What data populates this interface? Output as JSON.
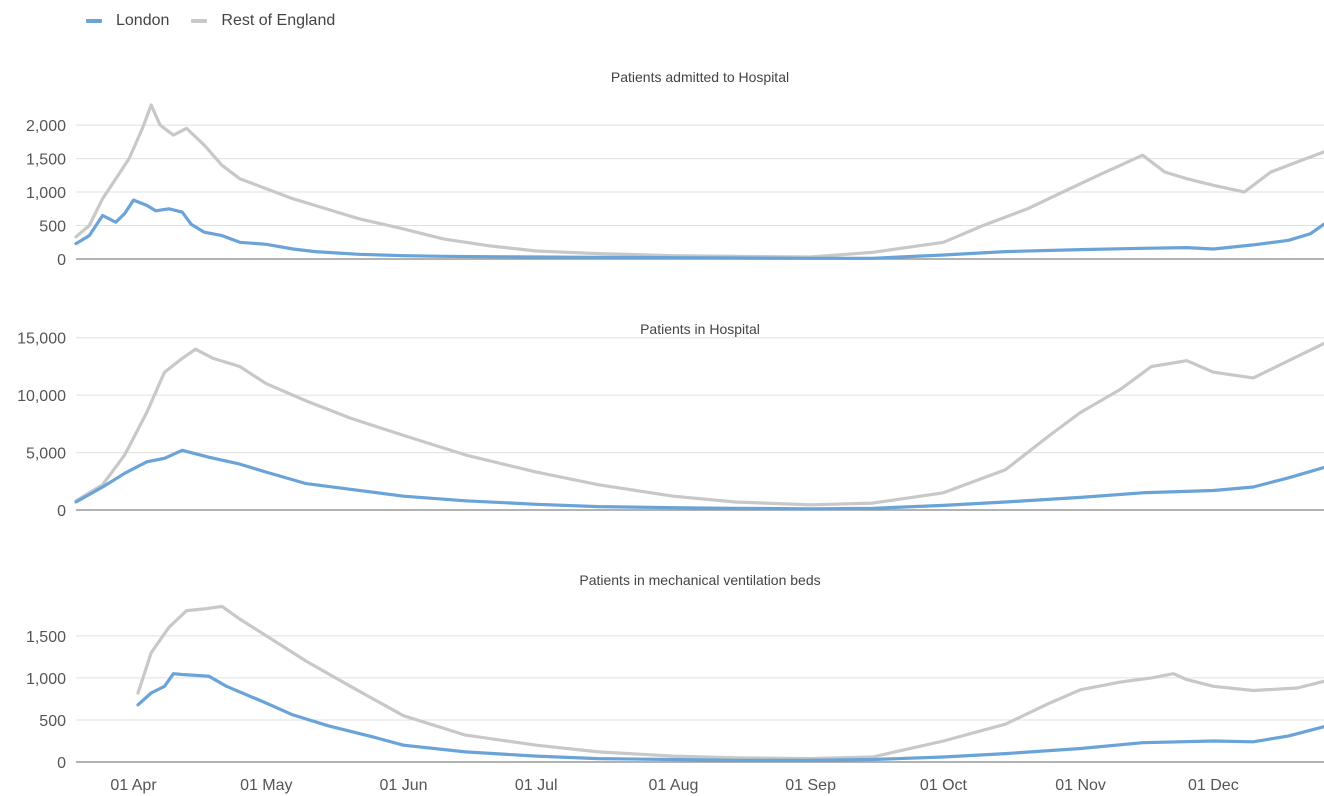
{
  "legend": {
    "london": {
      "label": "London",
      "color": "#6aa3d8"
    },
    "rest": {
      "label": "Rest of England",
      "color": "#c8c8c8"
    }
  },
  "x_ticks": [
    "01 Apr",
    "01 May",
    "01 Jun",
    "01 Jul",
    "01 Aug",
    "01 Sep",
    "01 Oct",
    "01 Nov",
    "01 Dec"
  ],
  "chart_data": [
    {
      "type": "line",
      "title": "Patients admitted to Hospital",
      "xlabel": "",
      "ylabel": "",
      "ylim": [
        0,
        2300
      ],
      "yticks": [
        0,
        500,
        1000,
        1500,
        2000
      ],
      "ytick_labels": [
        "0",
        "500",
        "1,000",
        "1,500",
        "2,000"
      ],
      "grid": true,
      "legend": "top-left",
      "series": [
        {
          "name": "London",
          "color": "#6aa3d8",
          "x": [
            "2020-03-19",
            "2020-03-22",
            "2020-03-25",
            "2020-03-28",
            "2020-03-30",
            "2020-04-01",
            "2020-04-04",
            "2020-04-06",
            "2020-04-09",
            "2020-04-12",
            "2020-04-14",
            "2020-04-17",
            "2020-04-21",
            "2020-04-25",
            "2020-05-01",
            "2020-05-07",
            "2020-05-12",
            "2020-05-17",
            "2020-05-22",
            "2020-06-01",
            "2020-06-10",
            "2020-06-20",
            "2020-07-01",
            "2020-07-15",
            "2020-08-01",
            "2020-08-15",
            "2020-09-01",
            "2020-09-15",
            "2020-10-01",
            "2020-10-15",
            "2020-11-01",
            "2020-11-15",
            "2020-11-25",
            "2020-12-01",
            "2020-12-10",
            "2020-12-18",
            "2020-12-23",
            "2020-12-26"
          ],
          "values": [
            230,
            350,
            650,
            550,
            680,
            880,
            800,
            720,
            750,
            700,
            520,
            400,
            350,
            250,
            220,
            150,
            110,
            90,
            70,
            50,
            40,
            35,
            30,
            25,
            20,
            15,
            10,
            10,
            60,
            110,
            140,
            160,
            170,
            150,
            210,
            280,
            380,
            520
          ]
        },
        {
          "name": "Rest of England",
          "color": "#c8c8c8",
          "x": [
            "2020-03-19",
            "2020-03-22",
            "2020-03-25",
            "2020-03-28",
            "2020-03-31",
            "2020-04-03",
            "2020-04-05",
            "2020-04-07",
            "2020-04-10",
            "2020-04-13",
            "2020-04-17",
            "2020-04-21",
            "2020-04-25",
            "2020-05-01",
            "2020-05-07",
            "2020-05-12",
            "2020-05-17",
            "2020-05-22",
            "2020-06-01",
            "2020-06-10",
            "2020-06-20",
            "2020-07-01",
            "2020-07-15",
            "2020-08-01",
            "2020-08-15",
            "2020-09-01",
            "2020-09-15",
            "2020-10-01",
            "2020-10-10",
            "2020-10-20",
            "2020-10-28",
            "2020-11-05",
            "2020-11-10",
            "2020-11-15",
            "2020-11-20",
            "2020-11-25",
            "2020-12-01",
            "2020-12-08",
            "2020-12-14",
            "2020-12-20",
            "2020-12-26"
          ],
          "values": [
            330,
            500,
            900,
            1200,
            1500,
            1950,
            2300,
            2000,
            1850,
            1950,
            1700,
            1400,
            1200,
            1050,
            900,
            800,
            700,
            600,
            450,
            300,
            200,
            120,
            80,
            50,
            40,
            30,
            100,
            250,
            500,
            750,
            1000,
            1250,
            1400,
            1550,
            1300,
            1200,
            1100,
            1000,
            1300,
            1450,
            1600
          ]
        }
      ]
    },
    {
      "type": "line",
      "title": "Patients in Hospital",
      "xlabel": "",
      "ylabel": "",
      "ylim": [
        0,
        15500
      ],
      "yticks": [
        0,
        5000,
        10000,
        15000
      ],
      "ytick_labels": [
        "0",
        "5,000",
        "10,000",
        "15,000"
      ],
      "grid": true,
      "series": [
        {
          "name": "London",
          "color": "#6aa3d8",
          "x": [
            "2020-03-19",
            "2020-03-25",
            "2020-03-30",
            "2020-04-04",
            "2020-04-08",
            "2020-04-12",
            "2020-04-18",
            "2020-04-25",
            "2020-05-01",
            "2020-05-10",
            "2020-05-20",
            "2020-06-01",
            "2020-06-15",
            "2020-07-01",
            "2020-07-15",
            "2020-08-01",
            "2020-08-15",
            "2020-09-01",
            "2020-09-15",
            "2020-10-01",
            "2020-10-15",
            "2020-11-01",
            "2020-11-15",
            "2020-12-01",
            "2020-12-10",
            "2020-12-18",
            "2020-12-26"
          ],
          "values": [
            700,
            2000,
            3200,
            4200,
            4500,
            5200,
            4600,
            4000,
            3300,
            2300,
            1800,
            1200,
            800,
            500,
            300,
            200,
            150,
            100,
            150,
            400,
            700,
            1100,
            1500,
            1700,
            2000,
            2800,
            3700
          ]
        },
        {
          "name": "Rest of England",
          "color": "#c8c8c8",
          "x": [
            "2020-03-19",
            "2020-03-25",
            "2020-03-30",
            "2020-04-04",
            "2020-04-08",
            "2020-04-12",
            "2020-04-15",
            "2020-04-19",
            "2020-04-25",
            "2020-05-01",
            "2020-05-10",
            "2020-05-20",
            "2020-06-01",
            "2020-06-15",
            "2020-07-01",
            "2020-07-15",
            "2020-08-01",
            "2020-08-15",
            "2020-09-01",
            "2020-09-15",
            "2020-10-01",
            "2020-10-15",
            "2020-10-25",
            "2020-11-01",
            "2020-11-10",
            "2020-11-17",
            "2020-11-25",
            "2020-12-01",
            "2020-12-10",
            "2020-12-18",
            "2020-12-26"
          ],
          "values": [
            800,
            2200,
            4800,
            8500,
            12000,
            13200,
            14000,
            13200,
            12500,
            11000,
            9500,
            8000,
            6500,
            4800,
            3300,
            2200,
            1200,
            700,
            450,
            600,
            1500,
            3500,
            6500,
            8500,
            10500,
            12500,
            13000,
            12000,
            11500,
            13000,
            14500
          ]
        }
      ]
    },
    {
      "type": "line",
      "title": "Patients in mechanical ventilation beds",
      "xlabel": "",
      "ylabel": "",
      "ylim": [
        0,
        1950
      ],
      "yticks": [
        0,
        500,
        1000,
        1500
      ],
      "ytick_labels": [
        "0",
        "500",
        "1,000",
        "1,500"
      ],
      "grid": true,
      "series": [
        {
          "name": "London",
          "color": "#6aa3d8",
          "x": [
            "2020-04-02",
            "2020-04-05",
            "2020-04-08",
            "2020-04-10",
            "2020-04-12",
            "2020-04-18",
            "2020-04-22",
            "2020-05-01",
            "2020-05-07",
            "2020-05-15",
            "2020-05-25",
            "2020-06-01",
            "2020-06-15",
            "2020-07-01",
            "2020-07-15",
            "2020-08-01",
            "2020-08-15",
            "2020-09-01",
            "2020-09-15",
            "2020-10-01",
            "2020-10-15",
            "2020-11-01",
            "2020-11-15",
            "2020-12-01",
            "2020-12-10",
            "2020-12-18",
            "2020-12-26"
          ],
          "values": [
            680,
            820,
            900,
            1050,
            1040,
            1020,
            900,
            700,
            560,
            430,
            300,
            200,
            120,
            70,
            40,
            30,
            20,
            20,
            30,
            60,
            100,
            160,
            230,
            250,
            240,
            310,
            420
          ]
        },
        {
          "name": "Rest of England",
          "color": "#c8c8c8",
          "x": [
            "2020-04-02",
            "2020-04-05",
            "2020-04-09",
            "2020-04-13",
            "2020-04-17",
            "2020-04-21",
            "2020-04-25",
            "2020-05-01",
            "2020-05-10",
            "2020-05-20",
            "2020-06-01",
            "2020-06-15",
            "2020-07-01",
            "2020-07-15",
            "2020-08-01",
            "2020-08-15",
            "2020-09-01",
            "2020-09-15",
            "2020-10-01",
            "2020-10-15",
            "2020-10-25",
            "2020-11-01",
            "2020-11-10",
            "2020-11-17",
            "2020-11-22",
            "2020-11-25",
            "2020-12-01",
            "2020-12-10",
            "2020-12-20",
            "2020-12-26"
          ],
          "values": [
            820,
            1300,
            1600,
            1800,
            1820,
            1850,
            1700,
            1500,
            1200,
            900,
            550,
            320,
            200,
            120,
            70,
            50,
            40,
            60,
            250,
            450,
            700,
            860,
            950,
            1000,
            1050,
            980,
            900,
            850,
            880,
            960
          ]
        }
      ]
    }
  ]
}
